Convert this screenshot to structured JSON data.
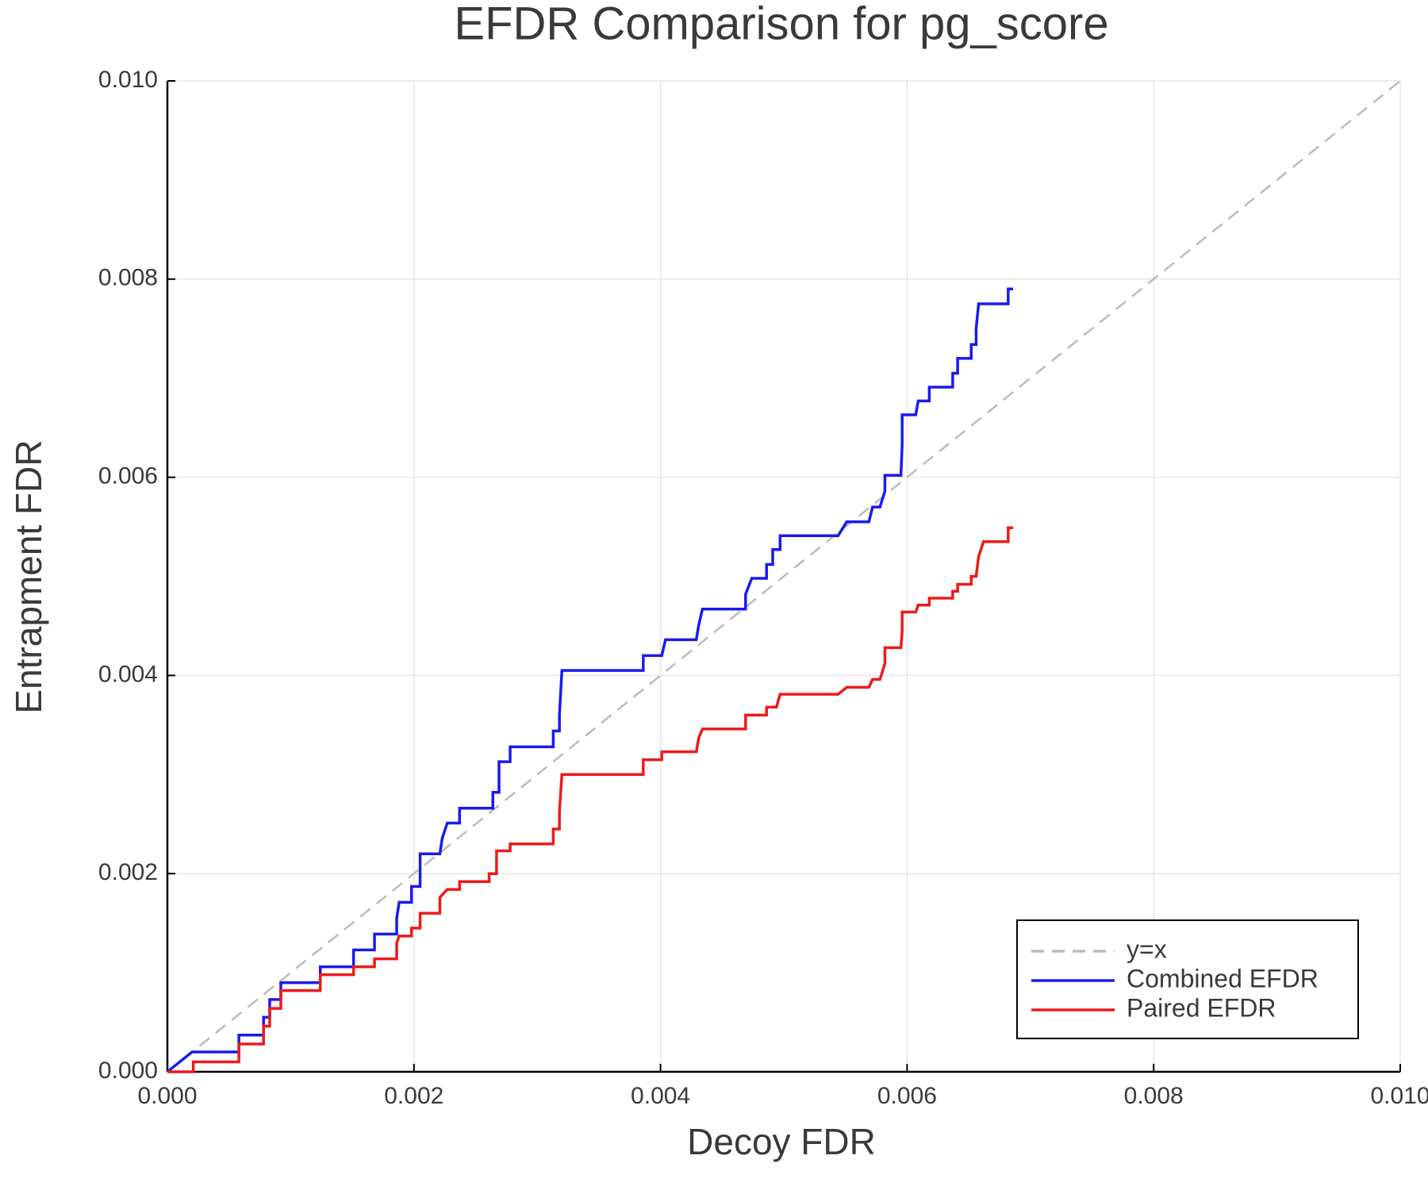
{
  "chart_data": {
    "type": "line",
    "title": "EFDR Comparison for pg_score",
    "x_label": "Decoy FDR",
    "y_label": "Entrapment FDR",
    "xlim": [
      0,
      0.01
    ],
    "ylim": [
      0,
      0.01
    ],
    "xticks": [
      {
        "value": 0,
        "label": "0.000"
      },
      {
        "value": 0.002,
        "label": "0.002"
      },
      {
        "value": 0.004,
        "label": "0.004"
      },
      {
        "value": 0.006,
        "label": "0.006"
      },
      {
        "value": 0.008,
        "label": "0.008"
      },
      {
        "value": 0.01,
        "label": "0.010"
      }
    ],
    "yticks": [
      {
        "value": 0,
        "label": "0.000"
      },
      {
        "value": 0.002,
        "label": "0.002"
      },
      {
        "value": 0.004,
        "label": "0.004"
      },
      {
        "value": 0.006,
        "label": "0.006"
      },
      {
        "value": 0.008,
        "label": "0.008"
      },
      {
        "value": 0.01,
        "label": "0.010"
      }
    ],
    "grid": true,
    "legend_position": "bottom-right",
    "series": [
      {
        "name": "y=x",
        "color": "#bbbbbb",
        "line_style": "dashed",
        "x": [
          0,
          0.01
        ],
        "values": [
          0,
          0.01
        ]
      },
      {
        "name": "Combined EFDR",
        "color": "#1a1aee",
        "line_style": "solid",
        "x": [
          0,
          0.0002,
          0.00058,
          0.00058,
          0.00078,
          0.00078,
          0.00083,
          0.00083,
          0.00092,
          0.00092,
          0.00124,
          0.00124,
          0.00151,
          0.00151,
          0.00168,
          0.00168,
          0.00186,
          0.00186,
          0.00188,
          0.00198,
          0.00198,
          0.00205,
          0.00205,
          0.00221,
          0.00223,
          0.00227,
          0.00237,
          0.00237,
          0.00264,
          0.00264,
          0.00269,
          0.00269,
          0.00278,
          0.00278,
          0.00313,
          0.00313,
          0.00318,
          0.00318,
          0.0032,
          0.00386,
          0.00386,
          0.00401,
          0.00404,
          0.00429,
          0.00431,
          0.00434,
          0.00469,
          0.00469,
          0.00474,
          0.00486,
          0.00486,
          0.00491,
          0.00491,
          0.00497,
          0.00497,
          0.00544,
          0.00551,
          0.00569,
          0.00572,
          0.00578,
          0.00582,
          0.00582,
          0.00595,
          0.00596,
          0.00596,
          0.00607,
          0.00609,
          0.00618,
          0.00618,
          0.00637,
          0.00637,
          0.00641,
          0.00641,
          0.00652,
          0.00652,
          0.00656,
          0.00656,
          0.00658,
          0.00682,
          0.00682,
          0.00686
        ],
        "values": [
          0,
          0.0002,
          0.0002,
          0.00037,
          0.00037,
          0.00055,
          0.00055,
          0.00073,
          0.00073,
          0.0009,
          0.0009,
          0.00106,
          0.00106,
          0.00123,
          0.00123,
          0.00139,
          0.00139,
          0.00155,
          0.00171,
          0.00171,
          0.00187,
          0.00187,
          0.0022,
          0.0022,
          0.00236,
          0.00251,
          0.00251,
          0.00266,
          0.00266,
          0.00282,
          0.00282,
          0.00313,
          0.00313,
          0.00328,
          0.00328,
          0.00344,
          0.00344,
          0.0036,
          0.00405,
          0.00405,
          0.0042,
          0.0042,
          0.00436,
          0.00436,
          0.00451,
          0.00467,
          0.00467,
          0.00482,
          0.00498,
          0.00498,
          0.00512,
          0.00512,
          0.00527,
          0.00527,
          0.00541,
          0.00541,
          0.00555,
          0.00555,
          0.0057,
          0.0057,
          0.00586,
          0.00602,
          0.00602,
          0.00633,
          0.00663,
          0.00663,
          0.00677,
          0.00677,
          0.00691,
          0.00691,
          0.00705,
          0.00705,
          0.0072,
          0.0072,
          0.00734,
          0.00734,
          0.0075,
          0.00775,
          0.00775,
          0.0079,
          0.0079
        ]
      },
      {
        "name": "Paired EFDR",
        "color": "#ee1a1a",
        "line_style": "solid",
        "x": [
          0,
          0.00021,
          0.00021,
          0.00058,
          0.00058,
          0.00078,
          0.00078,
          0.00083,
          0.00083,
          0.00092,
          0.00092,
          0.00124,
          0.00124,
          0.00151,
          0.00151,
          0.00168,
          0.00168,
          0.00186,
          0.00186,
          0.00188,
          0.00198,
          0.00198,
          0.00205,
          0.00205,
          0.00221,
          0.00221,
          0.00227,
          0.00237,
          0.00237,
          0.00261,
          0.00261,
          0.00267,
          0.00267,
          0.00278,
          0.00278,
          0.00313,
          0.00313,
          0.00318,
          0.00318,
          0.0032,
          0.00386,
          0.00386,
          0.00401,
          0.00401,
          0.00429,
          0.00431,
          0.00434,
          0.00469,
          0.00469,
          0.00486,
          0.00486,
          0.00494,
          0.00497,
          0.00544,
          0.00551,
          0.00569,
          0.00572,
          0.00578,
          0.00582,
          0.00582,
          0.00595,
          0.00596,
          0.00596,
          0.00607,
          0.00609,
          0.00618,
          0.00618,
          0.00637,
          0.00637,
          0.00641,
          0.00641,
          0.00652,
          0.00652,
          0.00656,
          0.00658,
          0.00662,
          0.00682,
          0.00682,
          0.00686
        ],
        "values": [
          0,
          0,
          0.0001,
          0.0001,
          0.00028,
          0.00028,
          0.00046,
          0.00046,
          0.00064,
          0.00064,
          0.00082,
          0.00082,
          0.00098,
          0.00098,
          0.00106,
          0.00106,
          0.00114,
          0.00114,
          0.0013,
          0.00137,
          0.00137,
          0.00145,
          0.00145,
          0.0016,
          0.0016,
          0.00176,
          0.00184,
          0.00184,
          0.00192,
          0.00192,
          0.002,
          0.002,
          0.00223,
          0.00223,
          0.0023,
          0.0023,
          0.00245,
          0.00245,
          0.00263,
          0.003,
          0.003,
          0.00315,
          0.00315,
          0.00323,
          0.00323,
          0.00337,
          0.00346,
          0.00346,
          0.0036,
          0.0036,
          0.00368,
          0.00368,
          0.00381,
          0.00381,
          0.00388,
          0.00388,
          0.00396,
          0.00396,
          0.00412,
          0.00428,
          0.00428,
          0.00445,
          0.00464,
          0.00464,
          0.00471,
          0.00471,
          0.00478,
          0.00478,
          0.00485,
          0.00485,
          0.00492,
          0.00492,
          0.005,
          0.005,
          0.0052,
          0.00535,
          0.00535,
          0.00549,
          0.00549
        ]
      }
    ]
  }
}
